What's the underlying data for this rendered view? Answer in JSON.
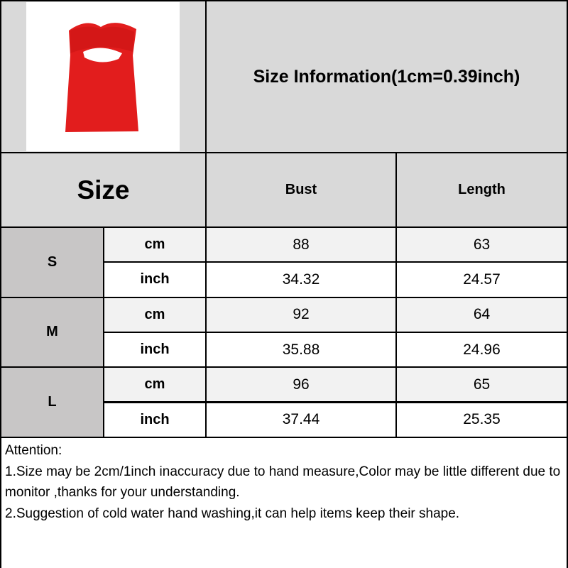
{
  "title": "Size Information(1cm=0.39inch)",
  "product_image": "red strapless satin mini dress with cut-out",
  "header": {
    "size": "Size",
    "columns": [
      "Bust",
      "Length"
    ]
  },
  "rows": [
    {
      "size": "S",
      "cm": {
        "unit": "cm",
        "values": [
          "88",
          "63"
        ]
      },
      "inch": {
        "unit": "inch",
        "values": [
          "34.32",
          "24.57"
        ]
      }
    },
    {
      "size": "M",
      "cm": {
        "unit": "cm",
        "values": [
          "92",
          "64"
        ]
      },
      "inch": {
        "unit": "inch",
        "values": [
          "35.88",
          "24.96"
        ]
      }
    },
    {
      "size": "L",
      "cm": {
        "unit": "cm",
        "values": [
          "96",
          "65"
        ]
      },
      "inch": {
        "unit": "inch",
        "values": [
          "37.44",
          "25.35"
        ]
      }
    }
  ],
  "notes": [
    "Attention:",
    "1.Size may be 2cm/1inch inaccuracy due to hand measure,Color may be little different due to monitor ,thanks for your understanding.",
    "2.Suggestion of cold water hand washing,it can help items keep their shape."
  ],
  "colors": {
    "header": "#d9d9d9",
    "size_cell": "#c8c6c6",
    "cm_row": "#f2f2f2",
    "dress": "#e21d1d"
  }
}
